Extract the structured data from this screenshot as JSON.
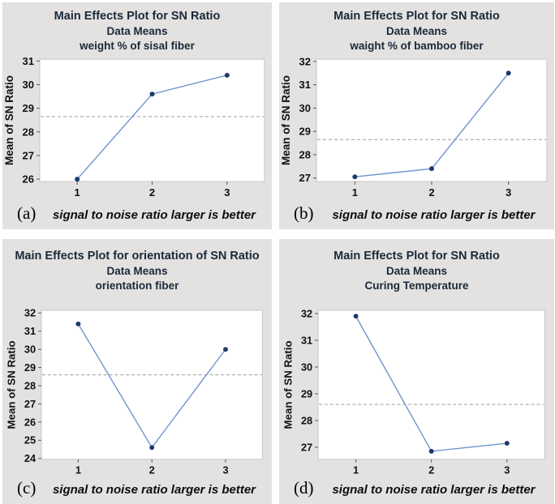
{
  "figure": {
    "description": "2x2 grid of Minitab main effects plots",
    "x_caption_shared": "signal to noise ratio larger is better",
    "y_axis_shared": "Mean of SN Ratio"
  },
  "colors": {
    "panel_bg": "#e3e2e0",
    "title": "#1a2839",
    "text": "#111111",
    "line": "#6e94ce",
    "marker": "#1d3a6e",
    "ref_line": "#9a9a9a",
    "plot_border": "#c6c6c6",
    "plot_bg": "#ffffff"
  },
  "chart_data": [
    {
      "type": "line",
      "panel_label": "(a)",
      "title": "Main Effects Plot for SN Ratio",
      "subtitle": "Data Means",
      "factor": "weight % of sisal fiber",
      "ylabel": "Mean of SN Ratio",
      "xlabel": "signal to noise ratio larger is better",
      "x": [
        1,
        2,
        3
      ],
      "values": [
        26.0,
        29.6,
        30.4
      ],
      "ref_line": 28.65,
      "yticks": [
        26,
        27,
        28,
        29,
        30,
        31
      ],
      "ylim": [
        25.9,
        31.08
      ],
      "grid": "off",
      "legend": "none"
    },
    {
      "type": "line",
      "panel_label": "(b)",
      "title": "Main Effects Plot for SN Ratio",
      "subtitle": "Data Means",
      "factor": "waight % of bamboo fiber",
      "ylabel": "Mean of SN Ratio",
      "xlabel": "signal to noise ratio larger is better",
      "x": [
        1,
        2,
        3
      ],
      "values": [
        27.05,
        27.4,
        31.5
      ],
      "ref_line": 28.65,
      "yticks": [
        27,
        28,
        29,
        30,
        31,
        32
      ],
      "ylim": [
        26.85,
        32.1
      ],
      "grid": "off",
      "legend": "none"
    },
    {
      "type": "line",
      "panel_label": "(c)",
      "title": "Main Effects Plot for orientation of SN Ratio",
      "subtitle": "Data Means",
      "factor": "orientation fiber",
      "ylabel": "Mean of SN Ratio",
      "xlabel": "signal to noise ratio larger is better",
      "x": [
        1,
        2,
        3
      ],
      "values": [
        31.4,
        24.6,
        30.0
      ],
      "ref_line": 28.6,
      "yticks": [
        24,
        25,
        26,
        27,
        28,
        29,
        30,
        31,
        32
      ],
      "ylim": [
        23.95,
        32.15
      ],
      "grid": "off",
      "legend": "none"
    },
    {
      "type": "line",
      "panel_label": "(d)",
      "title": "Main Effects Plot for SN Ratio",
      "subtitle": "Data Means",
      "factor": "Curing Temperature",
      "ylabel": "Mean of SN Ratio",
      "xlabel": "signal to noise ratio larger is better",
      "x": [
        1,
        2,
        3
      ],
      "values": [
        31.9,
        26.85,
        27.15
      ],
      "ref_line": 28.6,
      "yticks": [
        27,
        28,
        29,
        30,
        31,
        32
      ],
      "ylim": [
        26.55,
        32.12
      ],
      "grid": "off",
      "legend": "none"
    }
  ]
}
